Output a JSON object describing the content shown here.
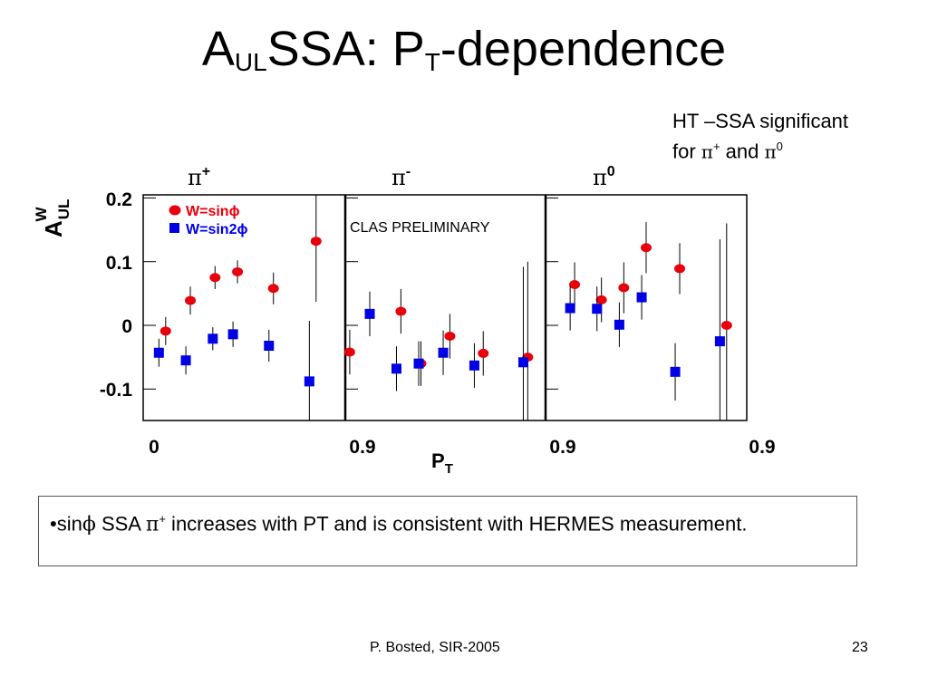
{
  "slide": {
    "title_main": "A",
    "title_sub1": "UL",
    "title_mid": "SSA: P",
    "title_sub2": "T",
    "title_end": "-dependence",
    "note_line1": "HT –SSA significant",
    "note_for": "for ",
    "note_pi": "π",
    "note_plus": "+",
    "note_and": " and ",
    "note_zero": "0",
    "bullet_prefix": "•sin",
    "bullet_phi": "ϕ",
    "bullet_ssa": " SSA ",
    "bullet_pi": "π",
    "bullet_plus": "+",
    "bullet_rest": " increases with PT and is consistent with HERMES measurement.",
    "footer_left": "P. Bosted,  SIR-2005",
    "footer_right": "23"
  },
  "chart_data": {
    "type": "scatter",
    "ylabel_main": "A",
    "ylabel_sup": "W",
    "ylabel_sub": "UL",
    "xlabel_main": "P",
    "xlabel_sub": "T",
    "ylim": [
      -0.15,
      0.2
    ],
    "yticks": [
      "0.2",
      "0.1",
      "0",
      "-0.1"
    ],
    "xtick_labels": [
      "0",
      "0.9",
      "0.9",
      "0.9"
    ],
    "annotation": "CLAS PRELIMINARY",
    "legend": [
      {
        "label": "W=sinϕ",
        "color": "#e8000b",
        "marker": "circle"
      },
      {
        "label": "W=sin2ϕ",
        "color": "#0000e6",
        "marker": "square"
      }
    ],
    "panels": [
      {
        "label": "π",
        "label_sup": "+",
        "xlim": [
          0,
          0.9
        ],
        "series": [
          {
            "name": "W=sinϕ",
            "color": "#e8000b",
            "marker": "circle",
            "x": [
              0.1,
              0.21,
              0.32,
              0.42,
              0.58,
              0.77
            ],
            "y": [
              -0.009,
              0.039,
              0.075,
              0.084,
              0.058,
              0.132
            ],
            "err": [
              0.022,
              0.022,
              0.018,
              0.018,
              0.025,
              0.095
            ]
          },
          {
            "name": "W=sin2ϕ",
            "color": "#0000e6",
            "marker": "square",
            "x": [
              0.07,
              0.19,
              0.31,
              0.4,
              0.56,
              0.74
            ],
            "y": [
              -0.043,
              -0.055,
              -0.021,
              -0.014,
              -0.032,
              -0.088
            ],
            "err": [
              0.022,
              0.022,
              0.018,
              0.02,
              0.025,
              0.095
            ]
          }
        ]
      },
      {
        "label": "π",
        "label_sup": "-",
        "xlim": [
          0,
          0.9
        ],
        "series": [
          {
            "name": "W=sinϕ",
            "color": "#e8000b",
            "marker": "circle",
            "x": [
              0.02,
              0.25,
              0.34,
              0.47,
              0.62,
              0.82
            ],
            "y": [
              -0.042,
              0.022,
              -0.06,
              -0.017,
              -0.044,
              -0.05
            ],
            "err": [
              0.035,
              0.035,
              0.035,
              0.035,
              0.035,
              0.15
            ]
          },
          {
            "name": "W=sin2ϕ",
            "color": "#0000e6",
            "marker": "square",
            "x": [
              0.11,
              0.23,
              0.33,
              0.44,
              0.58,
              0.8
            ],
            "y": [
              0.018,
              -0.068,
              -0.06,
              -0.043,
              -0.063,
              -0.058
            ],
            "err": [
              0.035,
              0.035,
              0.035,
              0.035,
              0.035,
              0.15
            ]
          }
        ]
      },
      {
        "label": "π",
        "label_sup": "0",
        "xlim": [
          0,
          0.9
        ],
        "series": [
          {
            "name": "W=sinϕ",
            "color": "#e8000b",
            "marker": "circle",
            "x": [
              0.13,
              0.25,
              0.35,
              0.45,
              0.6,
              0.81
            ],
            "y": [
              0.064,
              0.04,
              0.059,
              0.122,
              0.089,
              0.0
            ],
            "err": [
              0.035,
              0.035,
              0.04,
              0.04,
              0.04,
              0.16
            ]
          },
          {
            "name": "W=sin2ϕ",
            "color": "#0000e6",
            "marker": "square",
            "x": [
              0.11,
              0.23,
              0.33,
              0.43,
              0.58,
              0.78
            ],
            "y": [
              0.027,
              0.026,
              0.001,
              0.044,
              -0.073,
              -0.025
            ],
            "err": [
              0.035,
              0.035,
              0.035,
              0.035,
              0.045,
              0.16
            ]
          }
        ]
      }
    ]
  }
}
